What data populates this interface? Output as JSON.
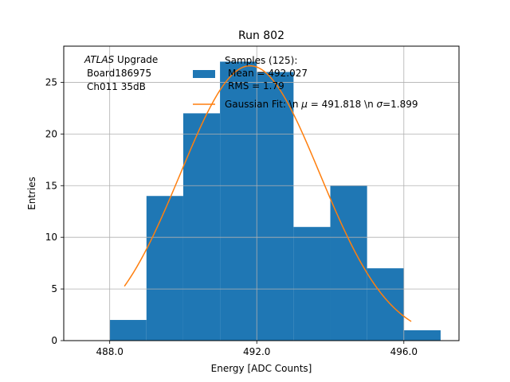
{
  "chart_data": {
    "type": "bar",
    "title": "Run 802",
    "xlabel": "Energy [ADC Counts]",
    "ylabel": "Entries",
    "xlim": [
      486.75,
      497.5
    ],
    "ylim": [
      0,
      28.5
    ],
    "xticks": [
      488.0,
      492.0,
      496.0
    ],
    "xtick_labels": [
      "488.0",
      "492.0",
      "496.0"
    ],
    "yticks": [
      0,
      5,
      10,
      15,
      20,
      25
    ],
    "ytick_labels": [
      "0",
      "5",
      "10",
      "15",
      "20",
      "25"
    ],
    "grid": true,
    "bins": [
      {
        "x0": 488.0,
        "x1": 489.0,
        "count": 2
      },
      {
        "x0": 489.0,
        "x1": 490.0,
        "count": 14
      },
      {
        "x0": 490.0,
        "x1": 491.0,
        "count": 22
      },
      {
        "x0": 491.0,
        "x1": 492.0,
        "count": 27
      },
      {
        "x0": 492.0,
        "x1": 493.0,
        "count": 26
      },
      {
        "x0": 493.0,
        "x1": 494.0,
        "count": 11
      },
      {
        "x0": 494.0,
        "x1": 495.0,
        "count": 15
      },
      {
        "x0": 495.0,
        "x1": 496.0,
        "count": 7
      },
      {
        "x0": 496.0,
        "x1": 497.0,
        "count": 1
      }
    ],
    "fit": {
      "mu": 491.818,
      "sigma": 1.899,
      "amplitude": 26.6,
      "x_range": [
        488.4,
        496.2
      ]
    },
    "colors": {
      "histogram": "#1f77b4",
      "fit": "#ff7f0e",
      "grid": "#b0b0b0"
    },
    "annotation": {
      "atlas": "ATLAS",
      "upgrade": " Upgrade",
      "board": "Board186975",
      "channel": "Ch011 35dB"
    },
    "legend": {
      "placement": "top-right",
      "samples_title": "Samples (125):",
      "mean_line": "Mean = 492.027",
      "rms_line": "RMS = 1.79",
      "fit_prefix": "Gaussian Fit: \\n ",
      "fit_mu_symbol": "μ",
      "fit_mu_text": " = 491.818 \\n ",
      "fit_sigma_symbol": "σ",
      "fit_sigma_text": "=1.899"
    }
  }
}
